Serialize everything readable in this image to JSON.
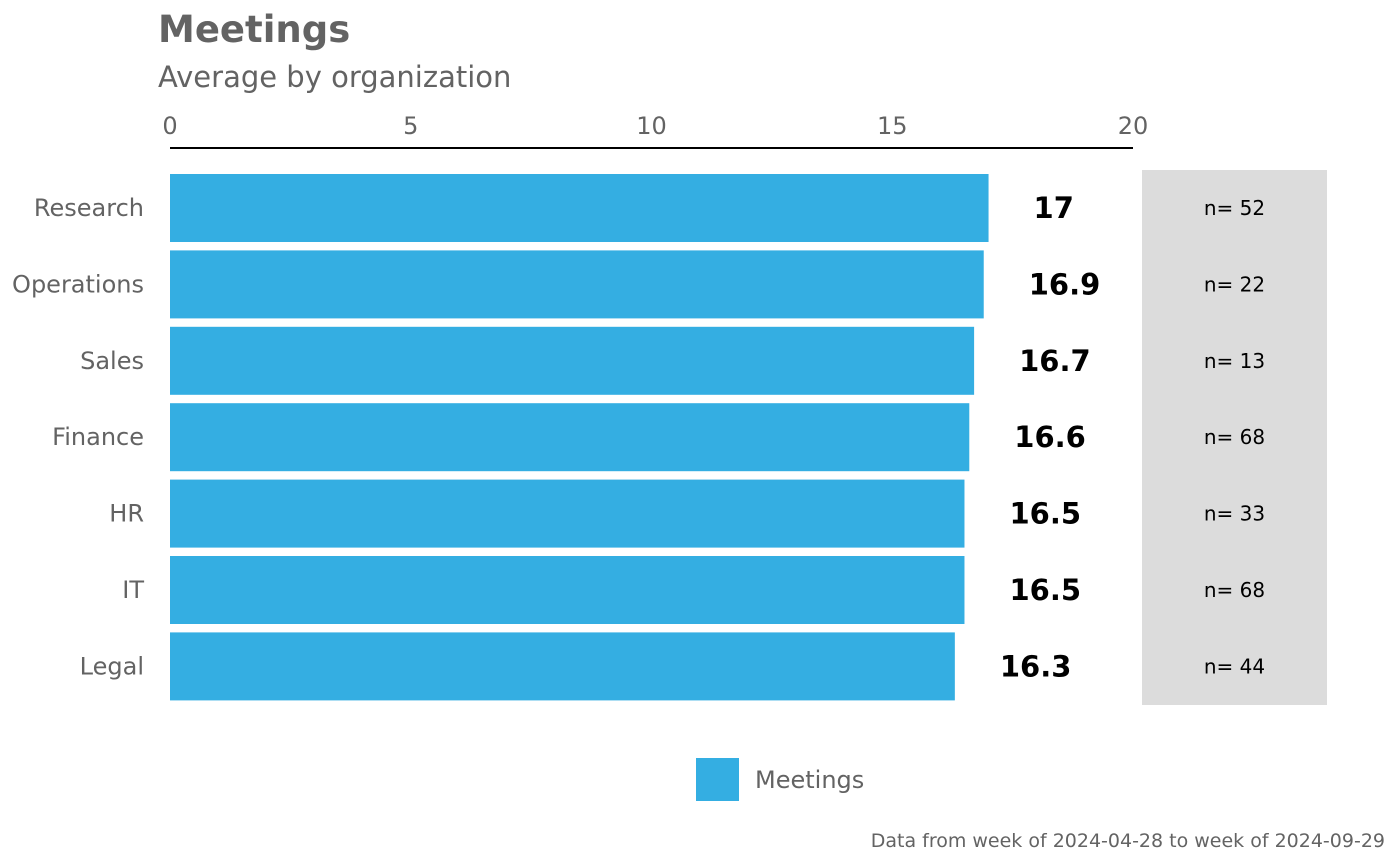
{
  "colors": {
    "bar": "#34AEE2",
    "n_panel": "#DCDCDC",
    "text_muted": "#636363",
    "axis_line": "#000000"
  },
  "chart_data": {
    "type": "bar",
    "orientation": "horizontal",
    "title": "Meetings",
    "subtitle": "Average by organization",
    "categories": [
      "Research",
      "Operations",
      "Sales",
      "Finance",
      "HR",
      "IT",
      "Legal"
    ],
    "series": [
      {
        "name": "Meetings",
        "values": [
          17.0,
          16.9,
          16.7,
          16.6,
          16.5,
          16.5,
          16.3
        ],
        "labels": [
          "17",
          "16.9",
          "16.7",
          "16.6",
          "16.5",
          "16.5",
          "16.3"
        ]
      }
    ],
    "n_labels": [
      "n= 52",
      "n= 22",
      "n= 13",
      "n= 68",
      "n= 33",
      "n= 68",
      "n= 44"
    ],
    "xlim": [
      0,
      20
    ],
    "xticks": [
      0,
      5,
      10,
      15,
      20
    ],
    "xaxis_position": "top",
    "grid": false,
    "legend": {
      "position": "bottom",
      "label": "Meetings"
    },
    "caption": "Data from week of 2024-04-28 to week of 2024-09-29"
  }
}
